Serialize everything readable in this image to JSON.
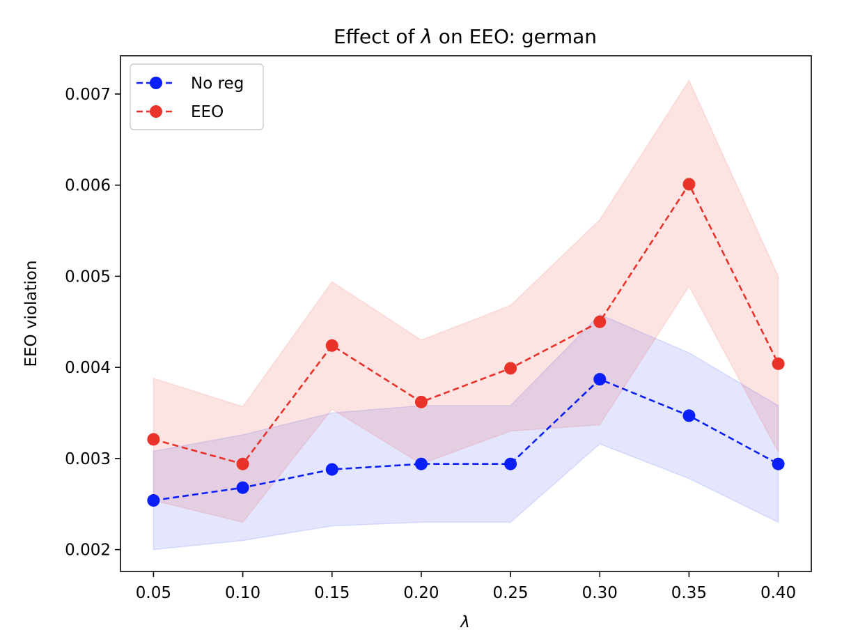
{
  "chart_data": {
    "type": "line",
    "title_prefix": "Effect of ",
    "title_symbol": "λ",
    "title_suffix": " on EEO: german",
    "xlabel": "λ",
    "ylabel": "EEO violation",
    "x": [
      0.05,
      0.1,
      0.15,
      0.2,
      0.25,
      0.3,
      0.35,
      0.4
    ],
    "xtick_labels": [
      "0.05",
      "0.10",
      "0.15",
      "0.20",
      "0.25",
      "0.30",
      "0.35",
      "0.40"
    ],
    "xlim": [
      0.0315,
      0.4185
    ],
    "yticks": [
      0.002,
      0.003,
      0.004,
      0.005,
      0.006,
      0.007
    ],
    "ytick_labels": [
      "0.002",
      "0.003",
      "0.004",
      "0.005",
      "0.006",
      "0.007"
    ],
    "ylim": [
      0.00176,
      0.00742
    ],
    "legend_position": "top-left",
    "grid": false,
    "series": [
      {
        "name": "No reg",
        "color": "#0a1ff5",
        "values": [
          0.00254,
          0.00268,
          0.00288,
          0.00294,
          0.00294,
          0.00387,
          0.00347,
          0.00294
        ],
        "lower": [
          0.002,
          0.0021,
          0.00226,
          0.0023,
          0.0023,
          0.00316,
          0.00278,
          0.0023
        ],
        "upper": [
          0.00308,
          0.00326,
          0.0035,
          0.00358,
          0.00358,
          0.00458,
          0.00416,
          0.00358
        ]
      },
      {
        "name": "EEO",
        "color": "#e8322a",
        "values": [
          0.00321,
          0.00294,
          0.00424,
          0.00362,
          0.00399,
          0.0045,
          0.00601,
          0.00404
        ],
        "lower": [
          0.00254,
          0.0023,
          0.00354,
          0.00294,
          0.0033,
          0.00337,
          0.00489,
          0.00307
        ],
        "upper": [
          0.00388,
          0.00357,
          0.00494,
          0.0043,
          0.00468,
          0.00562,
          0.00715,
          0.005
        ]
      }
    ]
  }
}
